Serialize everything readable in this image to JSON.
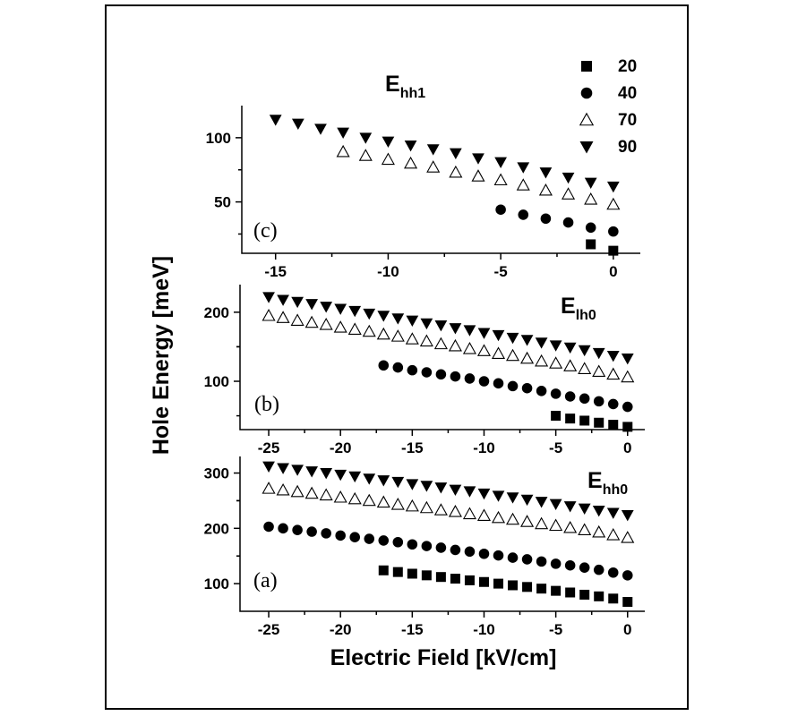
{
  "figure": {
    "xlabel": "Electric Field [kV/cm]",
    "ylabel": "Hole Energy [meV]",
    "legend": [
      {
        "label": "20",
        "marker": "square"
      },
      {
        "label": "40",
        "marker": "circle"
      },
      {
        "label": "70",
        "marker": "triangle-up-open"
      },
      {
        "label": "90",
        "marker": "triangle-down"
      }
    ]
  },
  "chart_data": [
    {
      "type": "scatter",
      "panel": "(c)",
      "energy_label": {
        "main": "E",
        "sub": "hh1"
      },
      "xlim": [
        -16.5,
        1.2
      ],
      "ylim": [
        10,
        125
      ],
      "xticks": [
        -15,
        -10,
        -5,
        0
      ],
      "yticks": [
        50,
        100
      ],
      "series": [
        {
          "name": "20",
          "marker": "square",
          "x": [
            -1,
            0
          ],
          "y": [
            17,
            12
          ]
        },
        {
          "name": "40",
          "marker": "circle",
          "x": [
            -5,
            -4,
            -3,
            -2,
            -1,
            0
          ],
          "y": [
            44,
            40,
            37,
            34,
            30,
            27
          ]
        },
        {
          "name": "70",
          "marker": "triangle-up-open",
          "x": [
            -12,
            -11,
            -10,
            -9,
            -8,
            -7,
            -6,
            -5,
            -4,
            -3,
            -2,
            -1,
            0
          ],
          "y": [
            89,
            86,
            83,
            80,
            77,
            73,
            70,
            67,
            63,
            59,
            56,
            52,
            48
          ]
        },
        {
          "name": "90",
          "marker": "triangle-down",
          "x": [
            -15,
            -14,
            -13,
            -12,
            -11,
            -10,
            -9,
            -8,
            -7,
            -6,
            -5,
            -4,
            -3,
            -2,
            -1,
            0
          ],
          "y": [
            114,
            111,
            107,
            104,
            100,
            97,
            94,
            91,
            88,
            84,
            81,
            77,
            73,
            69,
            65,
            62
          ]
        }
      ]
    },
    {
      "type": "scatter",
      "panel": "(b)",
      "energy_label": {
        "main": "E",
        "sub": "lh0"
      },
      "xlim": [
        -27,
        1.2
      ],
      "ylim": [
        30,
        240
      ],
      "xticks": [
        -25,
        -20,
        -15,
        -10,
        -5,
        0
      ],
      "yticks": [
        100,
        200
      ],
      "series": [
        {
          "name": "20",
          "marker": "square",
          "x": [
            -5,
            -4,
            -3,
            -2,
            -1,
            0
          ],
          "y": [
            50,
            46,
            43,
            40,
            37,
            34
          ]
        },
        {
          "name": "40",
          "marker": "circle",
          "x": [
            -17,
            -16,
            -15,
            -14,
            -13,
            -12,
            -11,
            -10,
            -9,
            -8,
            -7,
            -6,
            -5,
            -4,
            -3,
            -2,
            -1,
            0
          ],
          "y": [
            123,
            120,
            116,
            113,
            110,
            107,
            104,
            100,
            97,
            93,
            90,
            86,
            82,
            78,
            75,
            71,
            67,
            63
          ]
        },
        {
          "name": "70",
          "marker": "triangle-up-open",
          "x": [
            -25,
            -24,
            -23,
            -22,
            -21,
            -20,
            -19,
            -18,
            -17,
            -16,
            -15,
            -14,
            -13,
            -12,
            -11,
            -10,
            -9,
            -8,
            -7,
            -6,
            -5,
            -4,
            -3,
            -2,
            -1,
            0
          ],
          "y": [
            195,
            192,
            188,
            185,
            182,
            178,
            175,
            172,
            168,
            165,
            161,
            158,
            154,
            151,
            147,
            144,
            140,
            137,
            133,
            129,
            126,
            122,
            118,
            114,
            110,
            106
          ]
        },
        {
          "name": "90",
          "marker": "triangle-down",
          "x": [
            -25,
            -24,
            -23,
            -22,
            -21,
            -20,
            -19,
            -18,
            -17,
            -16,
            -15,
            -14,
            -13,
            -12,
            -11,
            -10,
            -9,
            -8,
            -7,
            -6,
            -5,
            -4,
            -3,
            -2,
            -1,
            0
          ],
          "y": [
            222,
            218,
            215,
            212,
            208,
            205,
            202,
            198,
            195,
            191,
            188,
            184,
            181,
            177,
            174,
            170,
            167,
            163,
            160,
            156,
            152,
            149,
            145,
            141,
            137,
            133
          ]
        }
      ]
    },
    {
      "type": "scatter",
      "panel": "(a)",
      "energy_label": {
        "main": "E",
        "sub": "hh0"
      },
      "xlim": [
        -27,
        1.2
      ],
      "ylim": [
        50,
        330
      ],
      "xticks": [
        -25,
        -20,
        -15,
        -10,
        -5,
        0
      ],
      "yticks": [
        100,
        200,
        300
      ],
      "series": [
        {
          "name": "20",
          "marker": "square",
          "x": [
            -17,
            -16,
            -15,
            -14,
            -13,
            -12,
            -11,
            -10,
            -9,
            -8,
            -7,
            -6,
            -5,
            -4,
            -3,
            -2,
            -1,
            0
          ],
          "y": [
            124,
            121,
            118,
            115,
            112,
            109,
            106,
            103,
            100,
            97,
            94,
            91,
            87,
            84,
            80,
            77,
            73,
            67
          ]
        },
        {
          "name": "40",
          "marker": "circle",
          "x": [
            -25,
            -24,
            -23,
            -22,
            -21,
            -20,
            -19,
            -18,
            -17,
            -16,
            -15,
            -14,
            -13,
            -12,
            -11,
            -10,
            -9,
            -8,
            -7,
            -6,
            -5,
            -4,
            -3,
            -2,
            -1,
            0
          ],
          "y": [
            203,
            200,
            197,
            194,
            191,
            187,
            184,
            181,
            178,
            175,
            171,
            168,
            165,
            161,
            158,
            154,
            151,
            147,
            144,
            140,
            136,
            133,
            129,
            125,
            120,
            115
          ]
        },
        {
          "name": "70",
          "marker": "triangle-up-open",
          "x": [
            -25,
            -24,
            -23,
            -22,
            -21,
            -20,
            -19,
            -18,
            -17,
            -16,
            -15,
            -14,
            -13,
            -12,
            -11,
            -10,
            -9,
            -8,
            -7,
            -6,
            -5,
            -4,
            -3,
            -2,
            -1,
            0
          ],
          "y": [
            272,
            269,
            266,
            263,
            260,
            256,
            253,
            250,
            247,
            243,
            240,
            237,
            233,
            230,
            226,
            223,
            219,
            216,
            212,
            208,
            205,
            201,
            197,
            193,
            188,
            183
          ]
        },
        {
          "name": "90",
          "marker": "triangle-down",
          "x": [
            -25,
            -24,
            -23,
            -22,
            -21,
            -20,
            -19,
            -18,
            -17,
            -16,
            -15,
            -14,
            -13,
            -12,
            -11,
            -10,
            -9,
            -8,
            -7,
            -6,
            -5,
            -4,
            -3,
            -2,
            -1,
            0
          ],
          "y": [
            312,
            309,
            306,
            303,
            300,
            297,
            294,
            290,
            287,
            284,
            280,
            277,
            274,
            270,
            267,
            263,
            259,
            256,
            252,
            248,
            244,
            240,
            236,
            232,
            228,
            224
          ]
        }
      ]
    }
  ]
}
